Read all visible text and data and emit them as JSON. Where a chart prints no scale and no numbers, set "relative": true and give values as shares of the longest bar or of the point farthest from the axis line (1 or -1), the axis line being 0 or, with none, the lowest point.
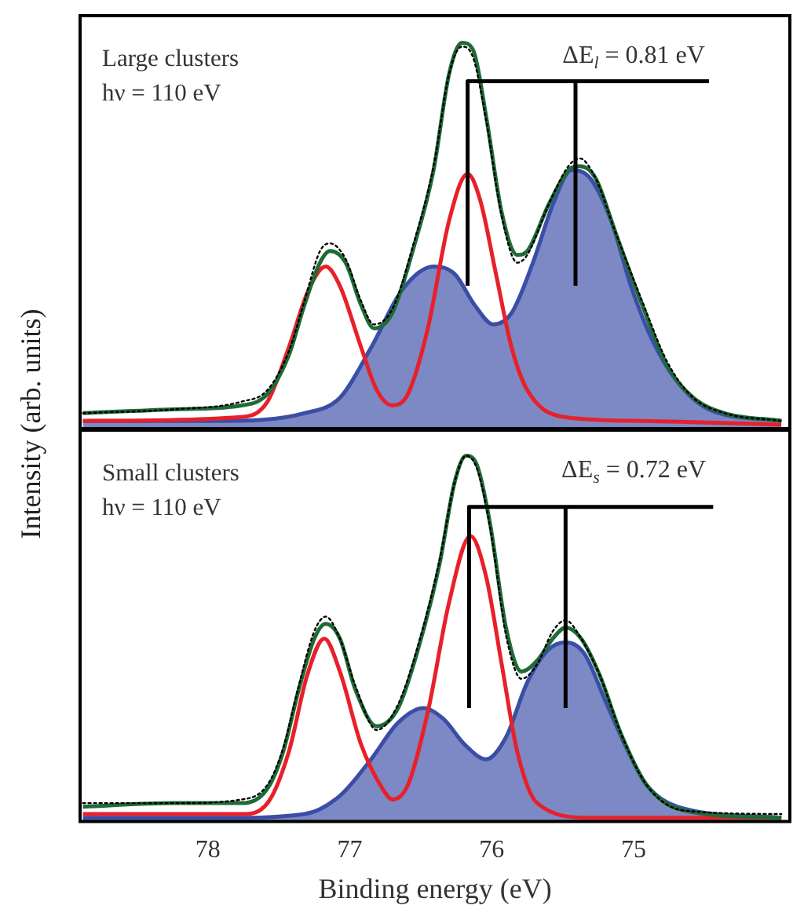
{
  "chart_data": [
    {
      "type": "line",
      "relative": true,
      "xlim": [
        78.9,
        73.9
      ],
      "xticks": [
        78,
        77,
        76,
        75
      ],
      "tick_labels": false,
      "grid": false,
      "marker": "none",
      "ylabel": "Intensity (arb. units)",
      "annotations": [
        "Large clusters",
        "hν = 110 eV",
        "ΔE$_{l}$ = 0.81 eV"
      ],
      "series": [
        {
          "type": "area",
          "color": "#3b4ea6",
          "x": [
            78.88,
            77.87,
            77.32,
            77.07,
            76.85,
            76.63,
            76.41,
            76.26,
            76.12,
            75.99,
            75.86,
            75.71,
            75.57,
            75.44,
            75.31,
            75.16,
            75.02,
            74.87,
            74.69,
            74.47,
            73.96
          ],
          "values": [
            0.02,
            0.02,
            0.04,
            0.08,
            0.21,
            0.36,
            0.42,
            0.4,
            0.32,
            0.27,
            0.3,
            0.43,
            0.58,
            0.67,
            0.65,
            0.54,
            0.37,
            0.23,
            0.12,
            0.05,
            0.02
          ]
        },
        {
          "type": "line",
          "color": "#e8202a",
          "x": [
            78.88,
            77.76,
            77.58,
            77.43,
            77.29,
            77.17,
            77.07,
            76.92,
            76.81,
            76.7,
            76.59,
            76.45,
            76.3,
            76.17,
            76.08,
            75.97,
            75.86,
            75.75,
            75.49,
            74.94,
            73.96
          ],
          "values": [
            0.02,
            0.03,
            0.07,
            0.21,
            0.36,
            0.42,
            0.37,
            0.21,
            0.1,
            0.06,
            0.09,
            0.26,
            0.54,
            0.66,
            0.59,
            0.4,
            0.21,
            0.1,
            0.03,
            0.02,
            0.01
          ]
        },
        {
          "type": "line",
          "line_style": "dotted",
          "color": "#000000",
          "x": [
            78.88,
            78.24,
            77.76,
            77.58,
            77.43,
            77.32,
            77.21,
            77.14,
            77.03,
            76.92,
            76.83,
            76.7,
            76.55,
            76.41,
            76.3,
            76.21,
            76.13,
            76.04,
            75.93,
            75.82,
            75.75,
            75.6,
            75.46,
            75.38,
            75.27,
            75.13,
            74.94,
            74.76,
            74.58,
            74.36,
            73.96
          ],
          "values": [
            0.04,
            0.05,
            0.07,
            0.1,
            0.2,
            0.33,
            0.46,
            0.48,
            0.44,
            0.33,
            0.27,
            0.31,
            0.48,
            0.68,
            0.92,
            0.99,
            0.96,
            0.8,
            0.55,
            0.43,
            0.45,
            0.58,
            0.68,
            0.7,
            0.65,
            0.51,
            0.33,
            0.17,
            0.08,
            0.04,
            0.02
          ]
        },
        {
          "type": "line",
          "color": "#1f6b35",
          "x": [
            78.88,
            78.24,
            77.76,
            77.58,
            77.43,
            77.32,
            77.21,
            77.14,
            77.03,
            76.92,
            76.83,
            76.7,
            76.55,
            76.41,
            76.3,
            76.21,
            76.13,
            76.04,
            75.93,
            75.82,
            75.75,
            75.6,
            75.46,
            75.38,
            75.27,
            75.13,
            74.94,
            74.76,
            74.58,
            74.36,
            73.96
          ],
          "values": [
            0.04,
            0.05,
            0.06,
            0.09,
            0.19,
            0.32,
            0.43,
            0.46,
            0.43,
            0.32,
            0.26,
            0.3,
            0.47,
            0.67,
            0.92,
            1.0,
            0.98,
            0.81,
            0.56,
            0.45,
            0.46,
            0.58,
            0.67,
            0.68,
            0.65,
            0.51,
            0.32,
            0.16,
            0.08,
            0.04,
            0.02
          ]
        },
        {
          "type": "line",
          "color": "#000000",
          "x": [
            76.17,
            76.17,
            74.47
          ],
          "values": [
            0.37,
            0.9,
            0.9
          ]
        },
        {
          "type": "line",
          "color": "#000000",
          "x": [
            75.41,
            75.41
          ],
          "values": [
            0.37,
            0.9
          ]
        }
      ]
    },
    {
      "type": "line",
      "relative": true,
      "xlim": [
        78.9,
        73.9
      ],
      "xticks": [
        78,
        77,
        76,
        75
      ],
      "tick_labels": "x",
      "grid": false,
      "marker": "none",
      "xlabel": "Binding energy (eV)",
      "annotations": [
        "Small clusters",
        "hν = 110 eV",
        "ΔE$_{s}$ = 0.72 eV"
      ],
      "series": [
        {
          "type": "area",
          "color": "#3b4ea6",
          "x": [
            78.88,
            77.87,
            77.32,
            77.07,
            76.85,
            76.66,
            76.48,
            76.34,
            76.19,
            76.04,
            75.9,
            75.75,
            75.6,
            75.48,
            75.35,
            75.2,
            75.05,
            74.91,
            74.69,
            73.96
          ],
          "values": [
            0.01,
            0.01,
            0.02,
            0.07,
            0.17,
            0.27,
            0.31,
            0.28,
            0.21,
            0.17,
            0.23,
            0.38,
            0.47,
            0.49,
            0.46,
            0.33,
            0.2,
            0.1,
            0.04,
            0.01
          ]
        },
        {
          "type": "line",
          "color": "#e8202a",
          "x": [
            78.88,
            77.76,
            77.58,
            77.43,
            77.3,
            77.18,
            77.07,
            76.92,
            76.77,
            76.7,
            76.59,
            76.45,
            76.3,
            76.15,
            76.04,
            75.93,
            75.82,
            75.68,
            75.31,
            73.96
          ],
          "values": [
            0.02,
            0.02,
            0.05,
            0.19,
            0.4,
            0.5,
            0.41,
            0.21,
            0.09,
            0.06,
            0.1,
            0.3,
            0.6,
            0.78,
            0.67,
            0.43,
            0.19,
            0.05,
            0.01,
            0.01
          ]
        },
        {
          "type": "line",
          "line_style": "dotted",
          "color": "#000000",
          "x": [
            78.88,
            78.24,
            77.76,
            77.58,
            77.47,
            77.36,
            77.25,
            77.17,
            77.07,
            76.96,
            76.81,
            76.66,
            76.52,
            76.37,
            76.26,
            76.18,
            76.1,
            76.01,
            75.9,
            75.79,
            75.68,
            75.57,
            75.48,
            75.37,
            75.24,
            75.09,
            74.91,
            74.65,
            73.96
          ],
          "values": [
            0.05,
            0.05,
            0.06,
            0.1,
            0.2,
            0.37,
            0.52,
            0.56,
            0.5,
            0.37,
            0.25,
            0.32,
            0.48,
            0.71,
            0.93,
            1.0,
            0.96,
            0.8,
            0.51,
            0.39,
            0.43,
            0.52,
            0.55,
            0.5,
            0.4,
            0.24,
            0.1,
            0.03,
            0.02
          ]
        },
        {
          "type": "line",
          "color": "#1f6b35",
          "x": [
            78.88,
            78.24,
            77.76,
            77.58,
            77.47,
            77.36,
            77.25,
            77.17,
            77.07,
            76.96,
            76.81,
            76.66,
            76.52,
            76.37,
            76.26,
            76.18,
            76.1,
            76.01,
            75.9,
            75.79,
            75.68,
            75.57,
            75.48,
            75.37,
            75.24,
            75.09,
            74.91,
            74.65,
            73.96
          ],
          "values": [
            0.04,
            0.05,
            0.05,
            0.09,
            0.19,
            0.36,
            0.5,
            0.54,
            0.5,
            0.36,
            0.26,
            0.31,
            0.47,
            0.7,
            0.93,
            1.0,
            0.97,
            0.81,
            0.53,
            0.41,
            0.44,
            0.5,
            0.53,
            0.5,
            0.4,
            0.24,
            0.1,
            0.03,
            0.01
          ]
        },
        {
          "type": "line",
          "color": "#000000",
          "x": [
            76.16,
            76.16,
            74.44
          ],
          "values": [
            0.31,
            0.86,
            0.86
          ]
        },
        {
          "type": "line",
          "color": "#000000",
          "x": [
            75.48,
            75.48
          ],
          "values": [
            0.31,
            0.86
          ]
        }
      ]
    }
  ]
}
